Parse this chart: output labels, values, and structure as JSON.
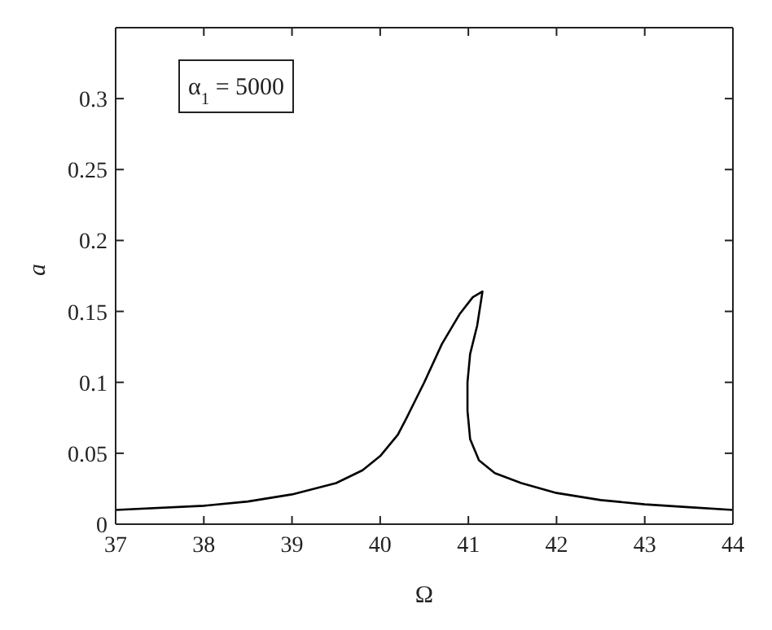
{
  "chart_data": {
    "type": "line",
    "xlabel": "Ω",
    "ylabel": "a",
    "annotations": [
      "α$_{1}$ = 5000"
    ],
    "x": [
      37,
      38,
      38.5,
      39,
      39.5,
      39.8,
      40,
      40.2,
      40.3,
      40.5,
      40.7,
      40.9,
      41.05,
      41.16,
      41.1,
      41.02,
      40.99,
      40.99,
      41.02,
      41.12,
      41.3,
      41.6,
      42,
      42.5,
      43,
      43.5,
      44
    ],
    "series": [
      {
        "color": "#000000",
        "values": [
          0.01,
          0.013,
          0.016,
          0.021,
          0.029,
          0.038,
          0.048,
          0.063,
          0.075,
          0.1,
          0.127,
          0.148,
          0.16,
          0.164,
          0.14,
          0.12,
          0.1,
          0.08,
          0.06,
          0.045,
          0.036,
          0.029,
          0.022,
          0.017,
          0.014,
          0.012,
          0.01
        ]
      }
    ],
    "xlim": [
      37,
      44
    ],
    "xticks": [
      37,
      38,
      39,
      40,
      41,
      42,
      43,
      44
    ],
    "ylim": [
      0,
      0.35
    ],
    "yticks": [
      0,
      0.05,
      0.1,
      0.15,
      0.2,
      0.25,
      0.3
    ],
    "grid": false,
    "marker": "none",
    "line_style": "solid"
  }
}
